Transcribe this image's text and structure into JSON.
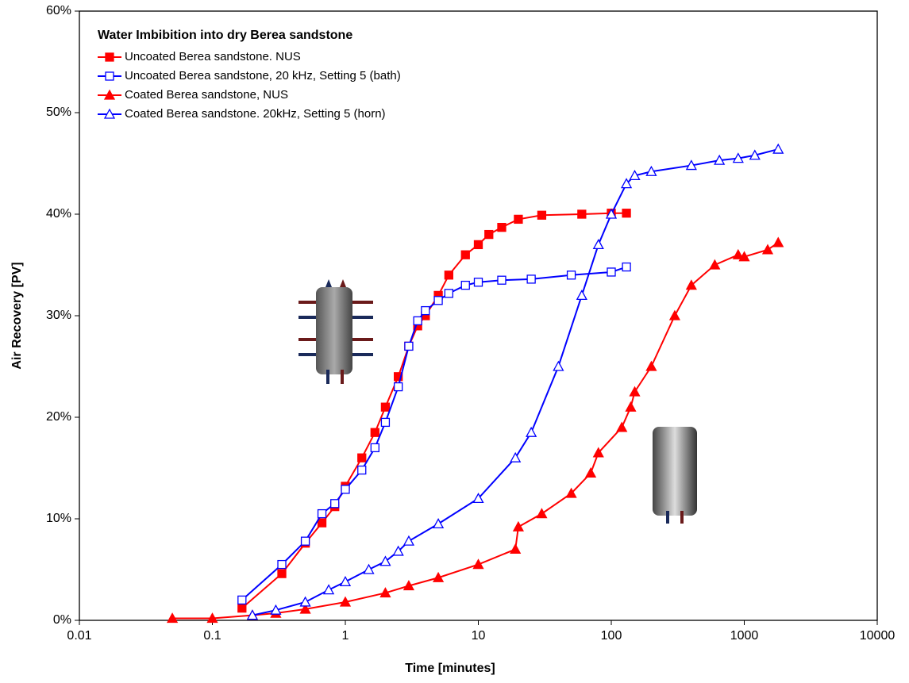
{
  "chart_data": {
    "type": "line",
    "title": "Water Imbibition into dry Berea sandstone",
    "x_label": "Time  [minutes]",
    "y_label": "Air Recovery [PV]",
    "x_log": true,
    "xlim": [
      0.01,
      10000
    ],
    "xticks": [
      0.01,
      0.1,
      1,
      10,
      100,
      1000,
      10000
    ],
    "ylim": [
      0,
      60
    ],
    "yticks": [
      {
        "value": 0,
        "label": "0%"
      },
      {
        "value": 10,
        "label": "10%"
      },
      {
        "value": 20,
        "label": "20%"
      },
      {
        "value": 30,
        "label": "30%"
      },
      {
        "value": 40,
        "label": "40%"
      },
      {
        "value": 50,
        "label": "50%"
      },
      {
        "value": 60,
        "label": "60%"
      }
    ],
    "legend": "upper left",
    "series": [
      {
        "name": "Uncoated Berea sandstone. NUS",
        "color": "#ff0000",
        "marker": "square",
        "filled": true,
        "x": [
          0.167,
          0.333,
          0.5,
          0.667,
          0.833,
          1,
          1.33,
          1.67,
          2,
          2.5,
          3,
          3.5,
          4,
          5,
          6,
          8,
          10,
          12,
          15,
          20,
          30,
          60,
          100,
          130
        ],
        "values": [
          1.2,
          4.6,
          7.6,
          9.6,
          11.2,
          13.2,
          16,
          18.5,
          21,
          24,
          27,
          29,
          30,
          32,
          34,
          36,
          37,
          38,
          38.7,
          39.5,
          39.9,
          40,
          40.1,
          40.1
        ]
      },
      {
        "name": "Uncoated Berea sandstone, 20 kHz, Setting 5 (bath)",
        "color": "#0000ff",
        "marker": "square",
        "filled": false,
        "x": [
          0.167,
          0.333,
          0.5,
          0.667,
          0.833,
          1,
          1.33,
          1.67,
          2,
          2.5,
          3,
          3.5,
          4,
          5,
          6,
          8,
          10,
          15,
          25,
          50,
          100,
          130
        ],
        "values": [
          2.0,
          5.5,
          7.8,
          10.5,
          11.5,
          12.9,
          14.8,
          17,
          19.5,
          23,
          27,
          29.5,
          30.5,
          31.5,
          32.2,
          33,
          33.3,
          33.5,
          33.6,
          34,
          34.3,
          34.8
        ]
      },
      {
        "name": "Coated Berea sandstone, NUS",
        "color": "#ff0000",
        "marker": "triangle",
        "filled": true,
        "x": [
          0.05,
          0.1,
          0.2,
          0.3,
          0.5,
          1,
          2,
          3,
          5,
          10,
          19,
          20,
          30,
          50,
          70,
          80,
          120,
          140,
          150,
          200,
          300,
          400,
          600,
          900,
          1000,
          1500,
          1800
        ],
        "values": [
          0.2,
          0.2,
          0.5,
          0.7,
          1.1,
          1.8,
          2.7,
          3.4,
          4.2,
          5.5,
          7.0,
          9.2,
          10.5,
          12.5,
          14.5,
          16.5,
          19,
          21,
          22.5,
          25,
          30,
          33,
          35,
          36,
          35.8,
          36.5,
          37.2
        ]
      },
      {
        "name": "Coated Berea sandstone. 20kHz, Setting 5 (horn)",
        "color": "#0000ff",
        "marker": "triangle",
        "filled": false,
        "x": [
          0.2,
          0.3,
          0.5,
          0.75,
          1,
          1.5,
          2,
          2.5,
          3,
          5,
          10,
          19,
          25,
          40,
          60,
          80,
          100,
          130,
          150,
          200,
          400,
          650,
          900,
          1200,
          1800
        ],
        "values": [
          0.5,
          1.0,
          1.8,
          3,
          3.8,
          5,
          5.8,
          6.8,
          7.8,
          9.5,
          12,
          16,
          18.5,
          25,
          32,
          37,
          40,
          43,
          43.8,
          44.2,
          44.8,
          45.3,
          45.5,
          45.8,
          46.4
        ]
      }
    ]
  }
}
